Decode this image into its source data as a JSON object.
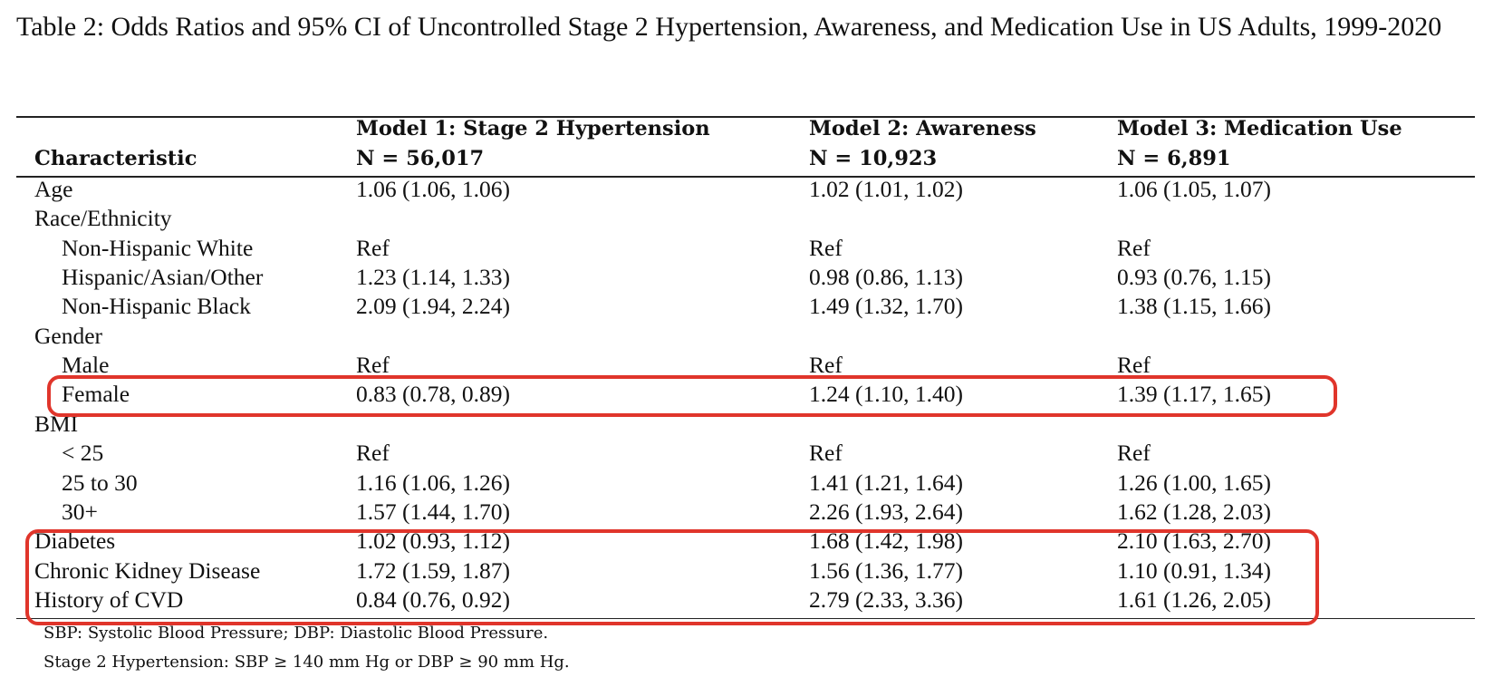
{
  "caption": "Table 2: Odds Ratios and 95% CI of Uncontrolled Stage 2 Hypertension, Awareness, and Medication Use in US Adults, 1999-2020",
  "header": {
    "characteristic": "Characteristic",
    "models": [
      {
        "title": "Model 1: Stage 2 Hypertension",
        "n": "N = 56,017"
      },
      {
        "title": "Model 2: Awareness",
        "n": "N = 10,923"
      },
      {
        "title": "Model 3: Medication Use",
        "n": "N = 6,891"
      }
    ]
  },
  "rows": [
    {
      "label": "Age",
      "indent": false,
      "m1": "1.06 (1.06, 1.06)",
      "m2": "1.02 (1.01, 1.02)",
      "m3": "1.06 (1.05, 1.07)"
    },
    {
      "label": "Race/Ethnicity",
      "indent": false,
      "m1": "",
      "m2": "",
      "m3": ""
    },
    {
      "label": "Non-Hispanic White",
      "indent": true,
      "m1": "Ref",
      "m2": "Ref",
      "m3": "Ref"
    },
    {
      "label": "Hispanic/Asian/Other",
      "indent": true,
      "m1": "1.23 (1.14, 1.33)",
      "m2": "0.98 (0.86, 1.13)",
      "m3": "0.93 (0.76, 1.15)"
    },
    {
      "label": "Non-Hispanic Black",
      "indent": true,
      "m1": "2.09 (1.94, 2.24)",
      "m2": "1.49 (1.32, 1.70)",
      "m3": "1.38 (1.15, 1.66)"
    },
    {
      "label": "Gender",
      "indent": false,
      "m1": "",
      "m2": "",
      "m3": ""
    },
    {
      "label": "Male",
      "indent": true,
      "m1": "Ref",
      "m2": "Ref",
      "m3": "Ref"
    },
    {
      "label": "Female",
      "indent": true,
      "m1": "0.83 (0.78, 0.89)",
      "m2": "1.24 (1.10, 1.40)",
      "m3": "1.39 (1.17, 1.65)"
    },
    {
      "label": "BMI",
      "indent": false,
      "m1": "",
      "m2": "",
      "m3": ""
    },
    {
      "label": "< 25",
      "indent": true,
      "m1": "Ref",
      "m2": "Ref",
      "m3": "Ref"
    },
    {
      "label": "25 to 30",
      "indent": true,
      "m1": "1.16 (1.06, 1.26)",
      "m2": "1.41 (1.21, 1.64)",
      "m3": "1.26 (1.00, 1.65)"
    },
    {
      "label": "30+",
      "indent": true,
      "m1": "1.57 (1.44, 1.70)",
      "m2": "2.26 (1.93, 2.64)",
      "m3": "1.62 (1.28, 2.03)"
    },
    {
      "label": "Diabetes",
      "indent": false,
      "m1": "1.02 (0.93, 1.12)",
      "m2": "1.68 (1.42, 1.98)",
      "m3": "2.10 (1.63, 2.70)"
    },
    {
      "label": "Chronic Kidney Disease",
      "indent": false,
      "m1": "1.72 (1.59, 1.87)",
      "m2": "1.56 (1.36, 1.77)",
      "m3": "1.10 (0.91, 1.34)"
    },
    {
      "label": "History of CVD",
      "indent": false,
      "m1": "0.84 (0.76, 0.92)",
      "m2": "2.79 (2.33, 3.36)",
      "m3": "1.61 (1.26, 2.05)"
    }
  ],
  "footnotes": [
    "SBP: Systolic Blood Pressure; DBP: Diastolic Blood Pressure.",
    "Stage 2 Hypertension: SBP ≥ 140 mm Hg or DBP ≥ 90 mm Hg."
  ],
  "highlight_color": "#e0352b"
}
